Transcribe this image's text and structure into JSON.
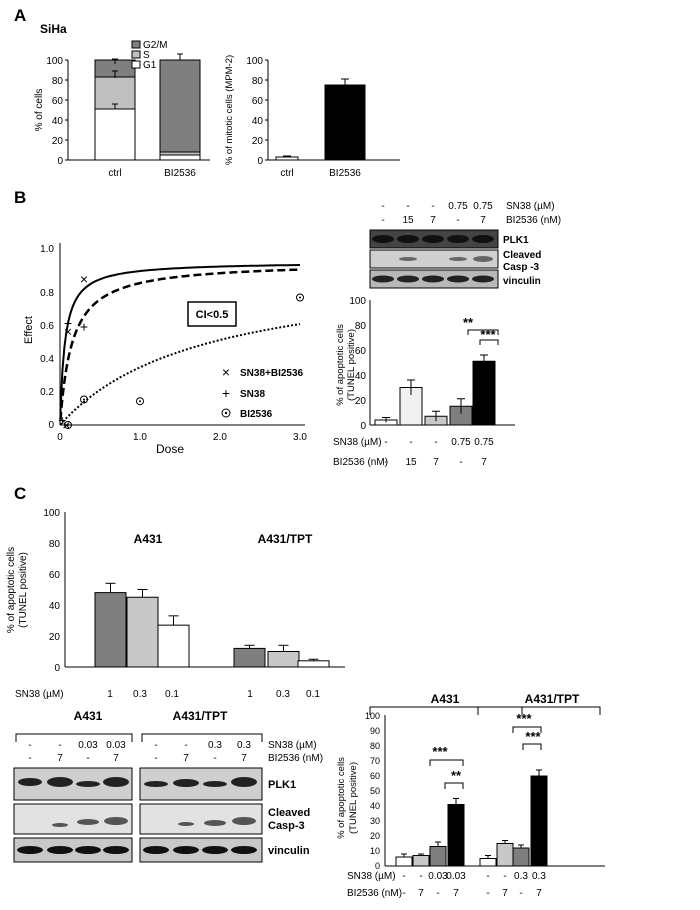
{
  "panels": {
    "A": "A",
    "B": "B",
    "C": "C"
  },
  "panelA": {
    "cell_line": "SiHa",
    "chart1": {
      "ylabel": "% of  cells",
      "yticks": [
        "0",
        "20",
        "40",
        "60",
        "80",
        "100"
      ],
      "categories": [
        "ctrl",
        "BI2536"
      ],
      "legend": [
        "G2/M",
        "S",
        "G1"
      ]
    },
    "chart2": {
      "ylabel": "% of mitotic cells (MPM-2)",
      "yticks": [
        "0",
        "20",
        "40",
        "60",
        "80",
        "100"
      ],
      "categories": [
        "ctrl",
        "BI2536"
      ]
    }
  },
  "panelB": {
    "curve": {
      "ylabel": "Effect",
      "xlabel": "Dose",
      "yticks": [
        "0",
        "0.2",
        "0.4",
        "0.6",
        "0.8",
        "1.0"
      ],
      "xticks": [
        "0",
        "1.0",
        "2.0",
        "3.0"
      ],
      "ci_label": "CI<0.5",
      "legend": [
        "SN38+BI2536",
        "SN38",
        "BI2536"
      ]
    },
    "blot": {
      "sn38_label": "SN38 (µM)",
      "bi_label": "BI2536 (nM)",
      "sn38": [
        "-",
        "-",
        "-",
        "0.75",
        "0.75"
      ],
      "bi": [
        "-",
        "15",
        "7",
        "-",
        "7"
      ],
      "bands": [
        "PLK1",
        "Cleaved",
        "Casp -3",
        "vinculin"
      ]
    },
    "tunel": {
      "ylabel1": "% of apoptotic cells",
      "ylabel2": "(TUNEL positive)",
      "yticks": [
        "0",
        "20",
        "40",
        "60",
        "80",
        "100"
      ],
      "sig1": "**",
      "sig2": "***",
      "sn38_label": "SN38 (µM)",
      "bi_label": "BI2536 (nM)",
      "sn38": [
        "-",
        "-",
        "-",
        "0.75",
        "0.75"
      ],
      "bi": [
        "-",
        "15",
        "7",
        "-",
        "7"
      ]
    }
  },
  "panelC": {
    "top": {
      "ylabel1": "% of apoptotic cells",
      "ylabel2": "(TUNEL positive)",
      "yticks": [
        "0",
        "20",
        "40",
        "60",
        "80",
        "100"
      ],
      "group1": "A431",
      "group2": "A431/TPT",
      "sn38_label": "SN38 (µM)",
      "doses": [
        "1",
        "0.3",
        "0.1",
        "1",
        "0.3",
        "0.1"
      ]
    },
    "blot": {
      "group1": "A431",
      "group2": "A431/TPT",
      "sn38_label": "SN38 (µM)",
      "bi_label": "BI2536 (nM)",
      "sn38_1": [
        "-",
        "-",
        "0.03",
        "0.03"
      ],
      "bi_1": [
        "-",
        "7",
        "-",
        "7"
      ],
      "sn38_2": [
        "-",
        "-",
        "0.3",
        "0.3"
      ],
      "bi_2": [
        "-",
        "7",
        "-",
        "7"
      ],
      "bands": [
        "PLK1",
        "Cleaved",
        "Casp-3",
        "vinculin"
      ]
    },
    "tunel": {
      "ylabel1": "% of apoptotic cells",
      "ylabel2": "(TUNEL positive)",
      "yticks": [
        "0",
        "10",
        "20",
        "30",
        "40",
        "50",
        "60",
        "70",
        "80",
        "90",
        "100"
      ],
      "group1": "A431",
      "group2": "A431/TPT",
      "sig1a": "***",
      "sig1b": "**",
      "sig2a": "***",
      "sig2b": "***",
      "sn38_label": "SN38 (µM)",
      "bi_label": "BI2536 (nM)",
      "sn38": [
        "-",
        "-",
        "0.03",
        "0.03",
        "-",
        "-",
        "0.3",
        "0.3"
      ],
      "bi": [
        "-",
        "7",
        "-",
        "7",
        "-",
        "7",
        "-",
        "7"
      ]
    }
  },
  "chart_data": [
    {
      "type": "bar",
      "title": "",
      "ylabel": "% of  cells",
      "ylim": [
        0,
        100
      ],
      "categories": [
        "ctrl",
        "BI2536"
      ],
      "series": [
        {
          "name": "G1",
          "values": [
            51,
            5
          ]
        },
        {
          "name": "S",
          "values": [
            32,
            3
          ]
        },
        {
          "name": "G2/M",
          "values": [
            17,
            92
          ]
        }
      ],
      "colors": {
        "G1": "#ffffff",
        "S": "#c0c0c0",
        "G2/M": "#7f7f7f"
      }
    },
    {
      "type": "bar",
      "title": "",
      "ylabel": "% of mitotic cells (MPM-2)",
      "ylim": [
        0,
        100
      ],
      "categories": [
        "ctrl",
        "BI2536"
      ],
      "values": [
        3,
        75
      ],
      "errors": [
        1,
        6
      ]
    },
    {
      "type": "line",
      "xlabel": "Dose",
      "ylabel": "Effect",
      "xlim": [
        0,
        3.0
      ],
      "ylim": [
        0,
        1.0
      ],
      "points": {
        "SN38+BI2536": [
          [
            0.1,
            0.55
          ],
          [
            0.3,
            0.86
          ]
        ],
        "SN38": [
          [
            0.1,
            0.6
          ],
          [
            0.3,
            0.58
          ],
          [
            0.03,
            0.03
          ]
        ],
        "BI2536": [
          [
            0.1,
            0.0
          ],
          [
            0.3,
            0.15
          ],
          [
            1.0,
            0.14
          ],
          [
            3.0,
            0.75
          ]
        ]
      }
    },
    {
      "type": "bar",
      "ylabel": "% of apoptotic cells (TUNEL positive)",
      "ylim": [
        0,
        100
      ],
      "values": [
        4,
        30,
        7,
        15,
        51
      ],
      "errors": [
        2,
        6,
        4,
        6,
        5
      ]
    },
    {
      "type": "bar",
      "ylabel": "% of apoptotic cells (TUNEL positive)",
      "ylim": [
        0,
        100
      ],
      "categories": [
        "1",
        "0.3",
        "0.1",
        "1",
        "0.3",
        "0.1"
      ],
      "values": [
        48,
        45,
        27,
        12,
        10,
        4
      ],
      "errors": [
        6,
        5,
        6,
        2,
        4,
        1
      ]
    },
    {
      "type": "bar",
      "ylabel": "% of apoptotic cells (TUNEL positive)",
      "ylim": [
        0,
        100
      ],
      "values": [
        6,
        7,
        13,
        41,
        5,
        15,
        12,
        60
      ],
      "errors": [
        2,
        1,
        3,
        4,
        2,
        2,
        2,
        4
      ]
    }
  ]
}
